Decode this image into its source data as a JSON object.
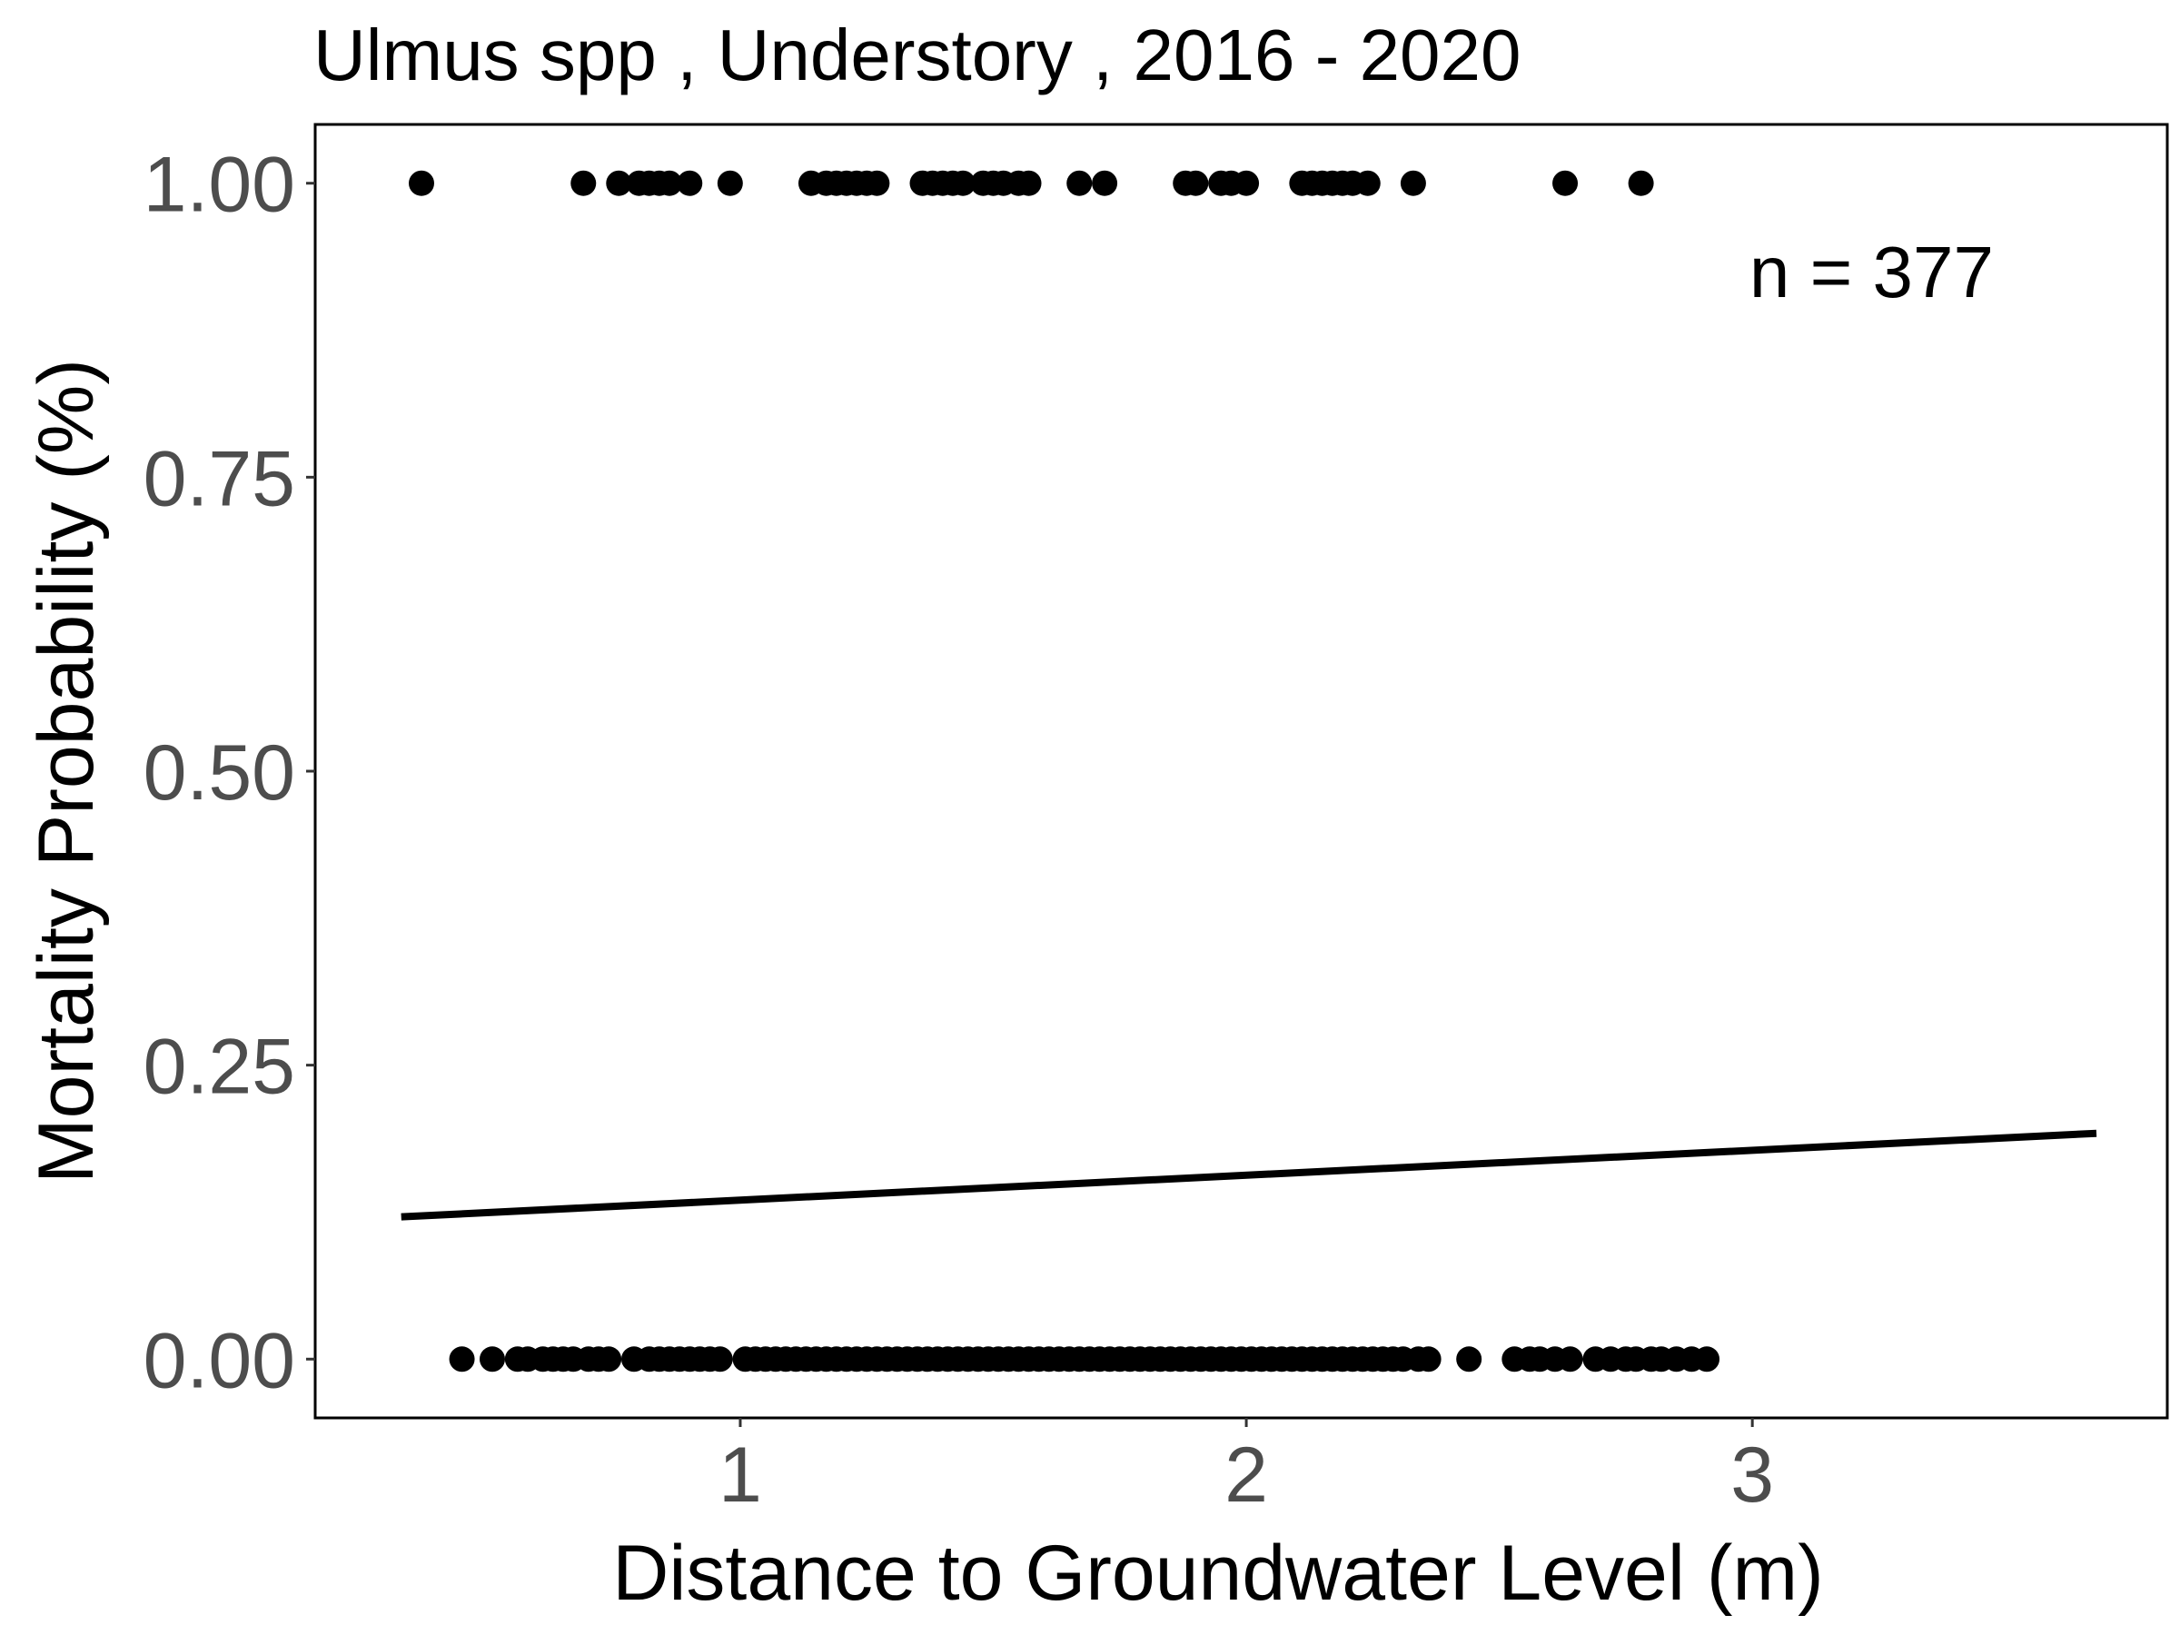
{
  "chart_data": {
    "type": "scatter",
    "title": "Ulmus spp , Understory , 2016 - 2020",
    "xlabel": "Distance to Groundwater Level (m)",
    "ylabel": "Mortality Probability (%)",
    "xlim": [
      0.16,
      3.82
    ],
    "ylim": [
      -0.05,
      1.05
    ],
    "x_ticks": [
      1,
      2,
      3
    ],
    "x_tick_labels": [
      "1",
      "2",
      "3"
    ],
    "y_ticks": [
      0,
      0.25,
      0.5,
      0.75,
      1.0
    ],
    "y_tick_labels": [
      "0.00",
      "0.25",
      "0.50",
      "0.75",
      "1.00"
    ],
    "grid": false,
    "annotation": "n =  377",
    "colors": {
      "points": "#000000",
      "line": "#000000",
      "frame": "#000000"
    },
    "series": [
      {
        "kind": "points",
        "y": 1,
        "x": [
          0.37,
          0.69,
          0.76,
          0.8,
          0.82,
          0.84,
          0.86,
          0.9,
          0.98,
          1.14,
          1.17,
          1.19,
          1.21,
          1.23,
          1.25,
          1.27,
          1.36,
          1.38,
          1.4,
          1.42,
          1.44,
          1.48,
          1.5,
          1.52,
          1.55,
          1.57,
          1.67,
          1.72,
          1.88,
          1.9,
          1.95,
          1.97,
          2.0,
          2.11,
          2.13,
          2.15,
          2.17,
          2.19,
          2.21,
          2.24,
          2.33,
          2.63,
          2.78
        ]
      },
      {
        "kind": "points",
        "y": 0,
        "x": [
          0.45,
          0.51,
          0.56,
          0.58,
          0.61,
          0.63,
          0.65,
          0.67,
          0.7,
          0.72,
          0.74,
          0.79,
          0.82,
          0.84,
          0.86,
          0.88,
          0.9,
          0.92,
          0.94,
          0.96,
          1.01,
          1.03,
          1.05,
          1.07,
          1.09,
          1.11,
          1.13,
          1.15,
          1.17,
          1.19,
          1.21,
          1.23,
          1.25,
          1.27,
          1.29,
          1.31,
          1.33,
          1.35,
          1.37,
          1.39,
          1.41,
          1.43,
          1.45,
          1.47,
          1.49,
          1.51,
          1.53,
          1.55,
          1.57,
          1.59,
          1.61,
          1.63,
          1.65,
          1.67,
          1.69,
          1.71,
          1.73,
          1.75,
          1.77,
          1.79,
          1.81,
          1.83,
          1.85,
          1.87,
          1.89,
          1.91,
          1.93,
          1.95,
          1.97,
          1.99,
          2.01,
          2.03,
          2.05,
          2.07,
          2.09,
          2.11,
          2.13,
          2.15,
          2.17,
          2.19,
          2.21,
          2.23,
          2.25,
          2.27,
          2.29,
          2.31,
          2.34,
          2.36,
          2.44,
          2.53,
          2.56,
          2.58,
          2.61,
          2.64,
          2.69,
          2.72,
          2.75,
          2.77,
          2.8,
          2.82,
          2.85,
          2.88,
          2.91
        ]
      },
      {
        "kind": "fit-line",
        "x": [
          0.33,
          3.68
        ],
        "y": [
          0.121,
          0.192
        ]
      }
    ]
  }
}
